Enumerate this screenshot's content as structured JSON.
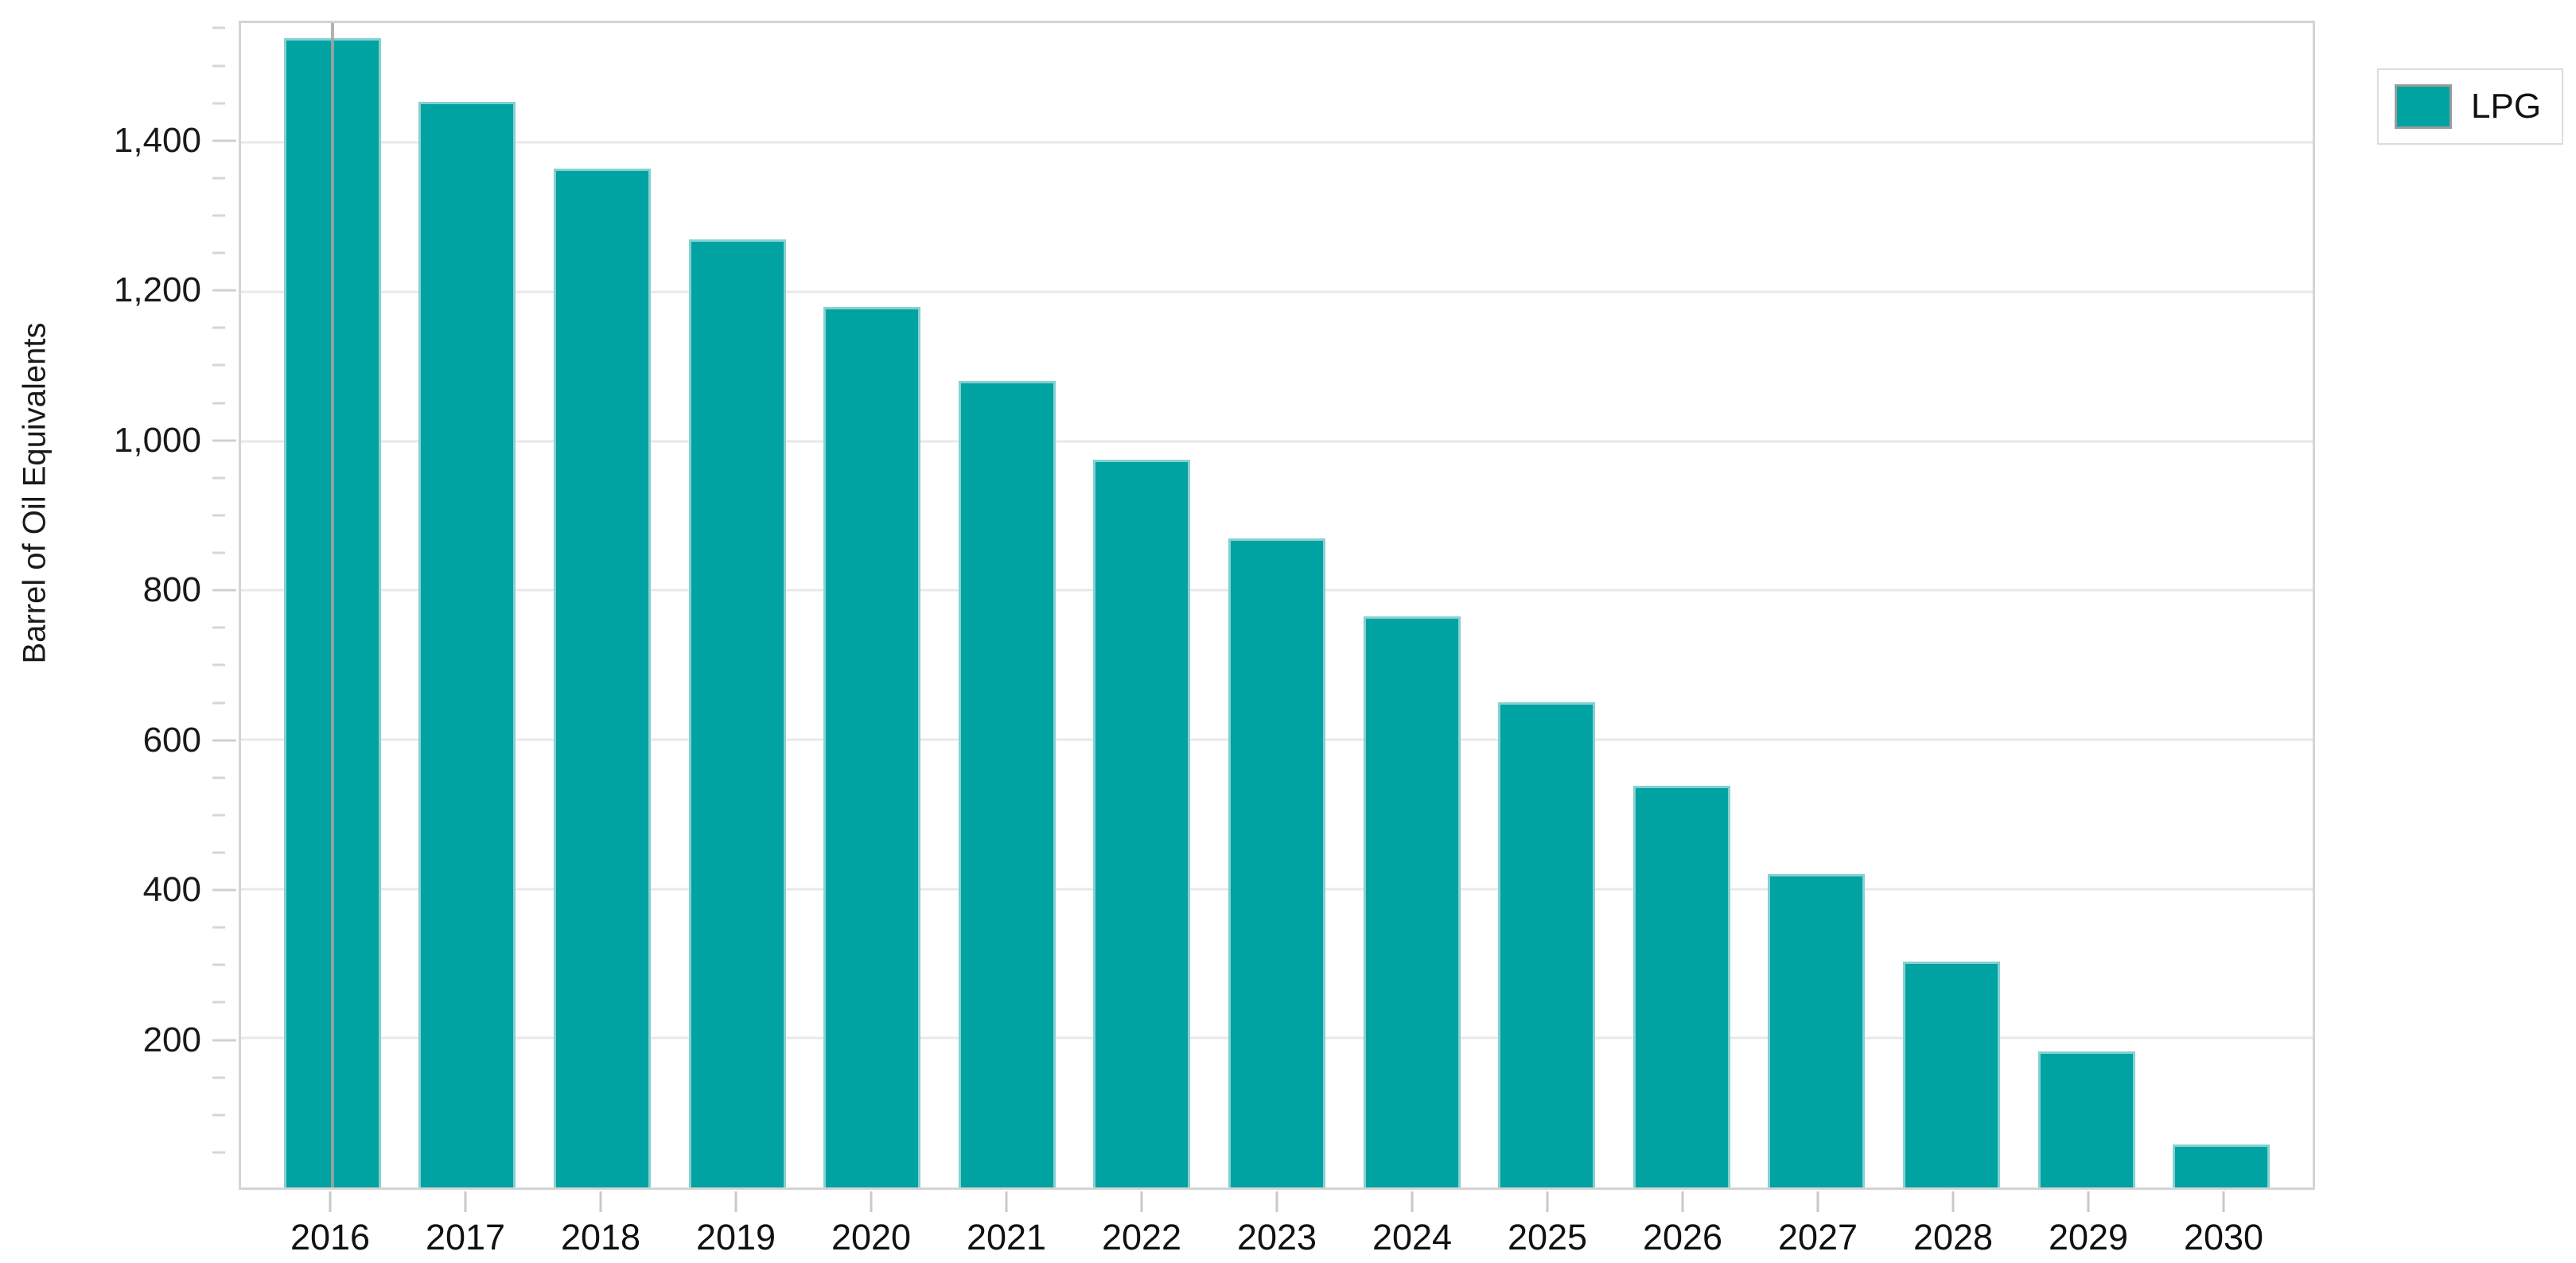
{
  "chart": {
    "legend": {
      "items": [
        {
          "label": "LPG",
          "color": "#00a2a2"
        }
      ]
    },
    "colors": {
      "bar_fill": "#00a2a2",
      "bar_stroke": "#94d6d6",
      "gridline": "#e8e8e8",
      "frame": "#d4d4d4",
      "tick": "#c9c9c9",
      "reference_line": "#a4a4a4",
      "text": "#1a1a1a"
    }
  },
  "chart_data": {
    "type": "bar",
    "title": "",
    "categories": [
      "2016",
      "2017",
      "2018",
      "2019",
      "2020",
      "2021",
      "2022",
      "2023",
      "2024",
      "2025",
      "2026",
      "2027",
      "2028",
      "2029",
      "2030"
    ],
    "series": [
      {
        "name": "LPG",
        "values": [
          1540,
          1455,
          1365,
          1270,
          1180,
          1080,
          975,
          870,
          765,
          650,
          538,
          420,
          303,
          182,
          58
        ]
      }
    ],
    "xlabel": "",
    "ylabel": "Barrel of Oil Equivalents",
    "ylim": [
      0,
      1560
    ],
    "y_major_ticks": [
      200,
      400,
      600,
      800,
      1000,
      1200,
      1400
    ],
    "y_minor_tick_step": 50,
    "y_tick_label_format": "thousands-comma",
    "grid": "horizontal-only",
    "legend_position": "top-right",
    "reference_line_at_category": "2016"
  }
}
